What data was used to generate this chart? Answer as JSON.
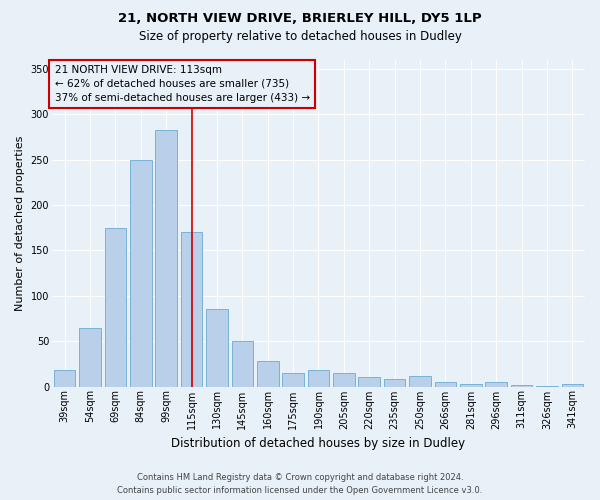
{
  "title1": "21, NORTH VIEW DRIVE, BRIERLEY HILL, DY5 1LP",
  "title2": "Size of property relative to detached houses in Dudley",
  "xlabel": "Distribution of detached houses by size in Dudley",
  "ylabel": "Number of detached properties",
  "categories": [
    "39sqm",
    "54sqm",
    "69sqm",
    "84sqm",
    "99sqm",
    "115sqm",
    "130sqm",
    "145sqm",
    "160sqm",
    "175sqm",
    "190sqm",
    "205sqm",
    "220sqm",
    "235sqm",
    "250sqm",
    "266sqm",
    "281sqm",
    "296sqm",
    "311sqm",
    "326sqm",
    "341sqm"
  ],
  "values": [
    18,
    65,
    175,
    250,
    283,
    170,
    85,
    50,
    28,
    15,
    18,
    15,
    10,
    8,
    12,
    5,
    3,
    5,
    2,
    1,
    3
  ],
  "bar_color": "#b8d0ea",
  "bar_edge_color": "#6aaad4",
  "bg_color": "#e8f0f8",
  "grid_color": "#ffffff",
  "vline_x_index": 5,
  "vline_color": "#cc0000",
  "annotation_box_text": "21 NORTH VIEW DRIVE: 113sqm\n← 62% of detached houses are smaller (735)\n37% of semi-detached houses are larger (433) →",
  "annotation_box_edge_color": "#cc0000",
  "footer": "Contains HM Land Registry data © Crown copyright and database right 2024.\nContains public sector information licensed under the Open Government Licence v3.0.",
  "ylim": [
    0,
    360
  ],
  "yticks": [
    0,
    50,
    100,
    150,
    200,
    250,
    300,
    350
  ],
  "title1_fontsize": 9.5,
  "title2_fontsize": 8.5,
  "ylabel_fontsize": 8,
  "xlabel_fontsize": 8.5,
  "tick_fontsize": 7,
  "footer_fontsize": 6,
  "annotation_fontsize": 7.5
}
